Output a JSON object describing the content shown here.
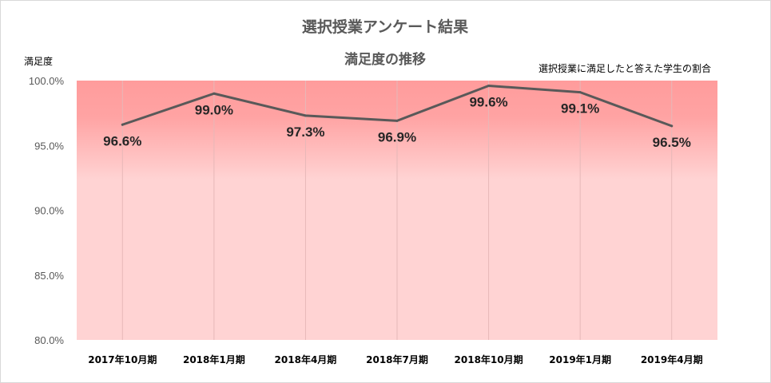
{
  "chart_data": {
    "type": "line",
    "title": "選択授業アンケート結果",
    "subtitle": "満足度の推移",
    "ylabel": "満足度",
    "annotation": "選択授業に満足したと答えた学生の割合",
    "categories": [
      "2017年10月期",
      "2018年1月期",
      "2018年4月期",
      "2018年7月期",
      "2018年10月期",
      "2019年1月期",
      "2019年4月期"
    ],
    "values": [
      96.6,
      99.0,
      97.3,
      96.9,
      99.6,
      99.1,
      96.5
    ],
    "data_labels": [
      "96.6%",
      "99.0%",
      "97.3%",
      "96.9%",
      "99.6%",
      "99.1%",
      "96.5%"
    ],
    "ylim": [
      80,
      100
    ],
    "yticks": [
      80,
      85,
      90,
      95,
      100
    ],
    "ytick_labels": [
      "80.0%",
      "85.0%",
      "90.0%",
      "95.0%",
      "100.0%"
    ],
    "grid": "vertical",
    "legend": "none",
    "colors": {
      "line": "#595959",
      "plot_band_top": "#ff9c9c",
      "plot_band_bottom": "#ffd3d3",
      "gridline": "#e6b8b8"
    }
  }
}
